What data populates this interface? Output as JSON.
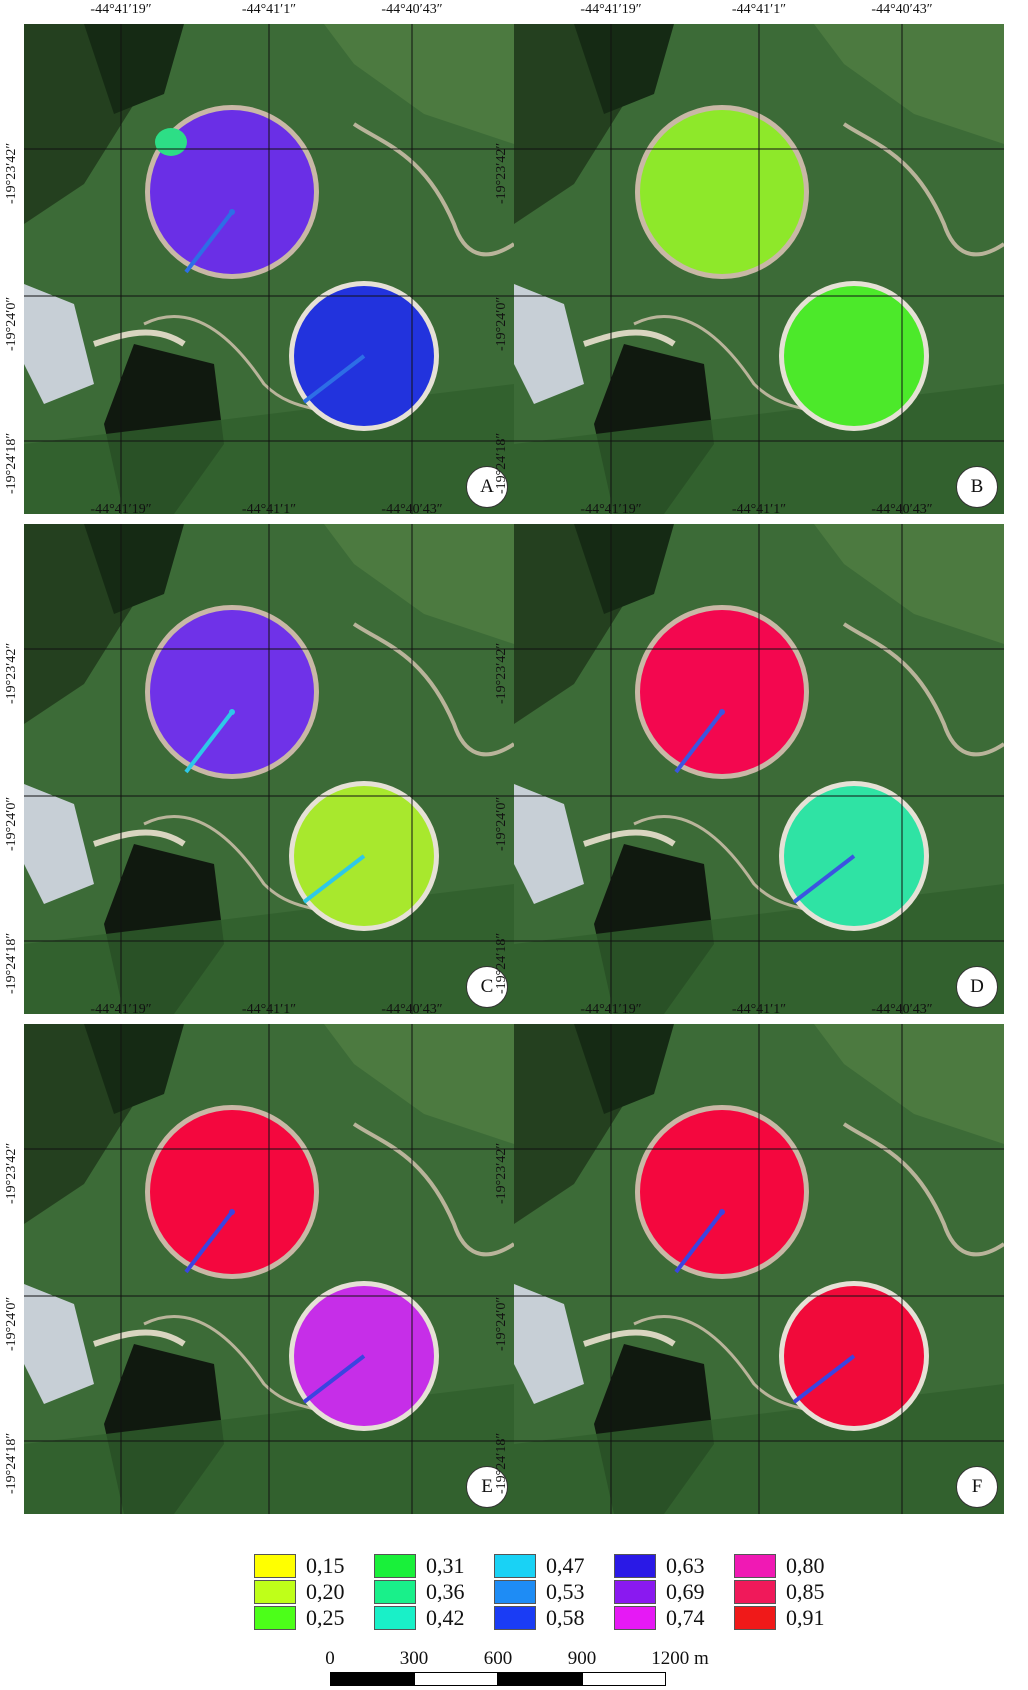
{
  "coords": {
    "lon": [
      "-44°41′19″",
      "-44°41′1″",
      "-44°40′43″"
    ],
    "lat": [
      "-19°23′42″",
      "-19°24′0″",
      "-19°24′18″"
    ]
  },
  "panels": [
    {
      "letter": "A",
      "pivot1": "#6a2fe6",
      "pivot2": "#2233dd",
      "spot": "#2dde86",
      "line": "#2d6ee6"
    },
    {
      "letter": "B",
      "pivot1": "#8ee82a",
      "pivot2": "#4ce92a",
      "spot": null,
      "line": null
    },
    {
      "letter": "C",
      "pivot1": "#6f32e8",
      "pivot2": "#a8e82d",
      "spot": null,
      "line": "#2ec8e8"
    },
    {
      "letter": "D",
      "pivot1": "#f3074f",
      "pivot2": "#2fe3a4",
      "spot": null,
      "line": "#3b55e0"
    },
    {
      "letter": "E",
      "pivot1": "#f4073e",
      "pivot2": "#c62ee8",
      "spot": null,
      "line": "#3b44e0"
    },
    {
      "letter": "F",
      "pivot1": "#f4073e",
      "pivot2": "#f10a3a",
      "spot": null,
      "line": "#3b44e0"
    }
  ],
  "legend": [
    {
      "color": "#ffff00",
      "label": "0,15"
    },
    {
      "color": "#bfff19",
      "label": "0,20"
    },
    {
      "color": "#4cff19",
      "label": "0,25"
    },
    {
      "color": "#19f03a",
      "label": "0,31"
    },
    {
      "color": "#19f08a",
      "label": "0,36"
    },
    {
      "color": "#19f0c8",
      "label": "0,42"
    },
    {
      "color": "#19d2f5",
      "label": "0,47"
    },
    {
      "color": "#1e8cf5",
      "label": "0,53"
    },
    {
      "color": "#1a3cf5",
      "label": "0,58"
    },
    {
      "color": "#2a19e6",
      "label": "0,63"
    },
    {
      "color": "#8a19f0",
      "label": "0,69"
    },
    {
      "color": "#e619f5",
      "label": "0,74"
    },
    {
      "color": "#f019b4",
      "label": "0,80"
    },
    {
      "color": "#f0195a",
      "label": "0,85"
    },
    {
      "color": "#f01919",
      "label": "0,91"
    }
  ],
  "scale": {
    "labels": [
      "0",
      "300",
      "600",
      "900",
      "1200 m"
    ]
  }
}
